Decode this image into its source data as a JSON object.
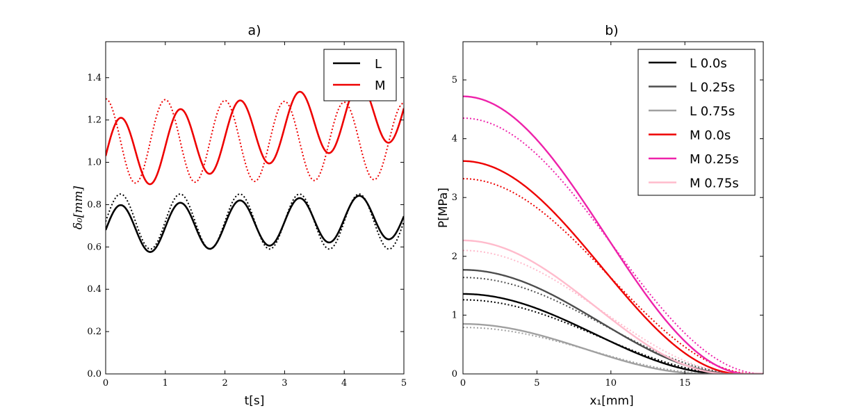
{
  "chart_data": [
    {
      "type": "line",
      "title": "a)",
      "xlabel": "t[s]",
      "ylabel": "δ₀[mm]",
      "xlim": [
        0,
        5
      ],
      "ylim": [
        0,
        1.57
      ],
      "xticks": [
        "0",
        "1",
        "2",
        "3",
        "4",
        "5"
      ],
      "yticks": [
        "0.0",
        "0.2",
        "0.4",
        "0.6",
        "0.8",
        "1.0",
        "1.2",
        "1.4"
      ],
      "legend": [
        "L",
        "M"
      ],
      "legend_position": "top-right",
      "series": [
        {
          "name": "L",
          "color": "#000000",
          "style": "solid",
          "offset": 0.68,
          "amplitude_start": 0.115,
          "amplitude_end": 0.105,
          "drift": 0.013,
          "period": 1.0,
          "phase": 0
        },
        {
          "name": "L (dotted)",
          "color": "#000000",
          "style": "dotted",
          "offset": 0.72,
          "amplitude": 0.13,
          "drift": 0,
          "period": 1.0,
          "phase": 0
        },
        {
          "name": "M",
          "color": "#ee0000",
          "style": "solid",
          "offset": 1.03,
          "amplitude_start": 0.17,
          "amplitude_end": 0.15,
          "drift": 0.045,
          "period": 1.0,
          "phase": 0
        },
        {
          "name": "M (dotted)",
          "color": "#ee0000",
          "style": "dotted",
          "offset": 1.1,
          "amplitude_start": 0.2,
          "amplitude_end": 0.18,
          "drift": 0,
          "period": 1.0,
          "phase": -0.25
        }
      ]
    },
    {
      "type": "line",
      "title": "b)",
      "xlabel": "x₁[mm]",
      "ylabel": "P[MPa]",
      "xlim": [
        0,
        20.3
      ],
      "ylim": [
        0,
        5.65
      ],
      "xticks": [
        "0",
        "5",
        "10",
        "15"
      ],
      "yticks": [
        "0",
        "1",
        "2",
        "3",
        "4",
        "5"
      ],
      "legend": [
        "L 0.0s",
        "L 0.25s",
        "L 0.75s",
        "M 0.0s",
        "M 0.25s",
        "M 0.75s"
      ],
      "legend_position": "top-right",
      "series": [
        {
          "name": "L 0.0s",
          "color": "#000000",
          "peak": 1.36,
          "half_width": 17.8,
          "dotted_peak": 1.26,
          "dotted_half_width": 18.5
        },
        {
          "name": "L 0.25s",
          "color": "#4d4d4d",
          "peak": 1.77,
          "half_width": 18.5,
          "dotted_peak": 1.64,
          "dotted_half_width": 19.2
        },
        {
          "name": "L 0.75s",
          "color": "#a0a0a0",
          "peak": 0.85,
          "half_width": 16.5,
          "dotted_peak": 0.79,
          "dotted_half_width": 17.3
        },
        {
          "name": "M 0.0s",
          "color": "#ee0000",
          "peak": 3.62,
          "half_width": 18.8,
          "dotted_peak": 3.32,
          "dotted_half_width": 19.8
        },
        {
          "name": "M 0.25s",
          "color": "#ee22aa",
          "peak": 4.72,
          "half_width": 19.3,
          "dotted_peak": 4.35,
          "dotted_half_width": 20.3
        },
        {
          "name": "M 0.75s",
          "color": "#ffbbcc",
          "peak": 2.27,
          "half_width": 18.0,
          "dotted_peak": 2.1,
          "dotted_half_width": 19.0
        }
      ]
    }
  ]
}
